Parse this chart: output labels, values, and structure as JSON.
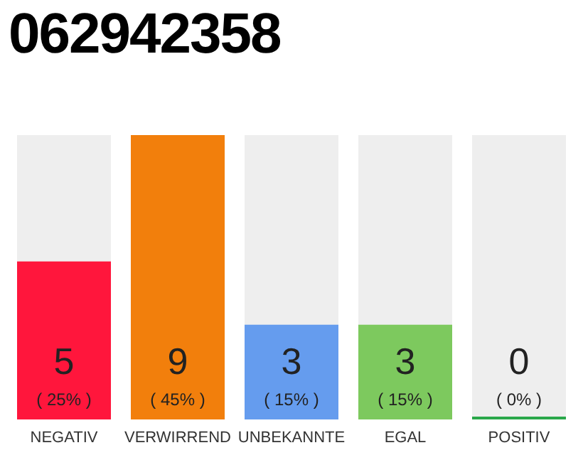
{
  "chart_data": {
    "type": "bar",
    "title": "062942358",
    "categories": [
      "NEGATIV",
      "VERWIRREND",
      "UNBEKANNTE",
      "EGAL",
      "POSITIV"
    ],
    "values": [
      25,
      45,
      15,
      15,
      0
    ],
    "colors": [
      "#ff163c",
      "#f27f0c",
      "#659cee",
      "#7dc95e",
      "#2aa84a"
    ],
    "value_labels": [
      "5\n( 25% )",
      "9\n( 45% )",
      "3\n( 15% )",
      "3\n( 15% )",
      "0\n( 0% )"
    ]
  }
}
